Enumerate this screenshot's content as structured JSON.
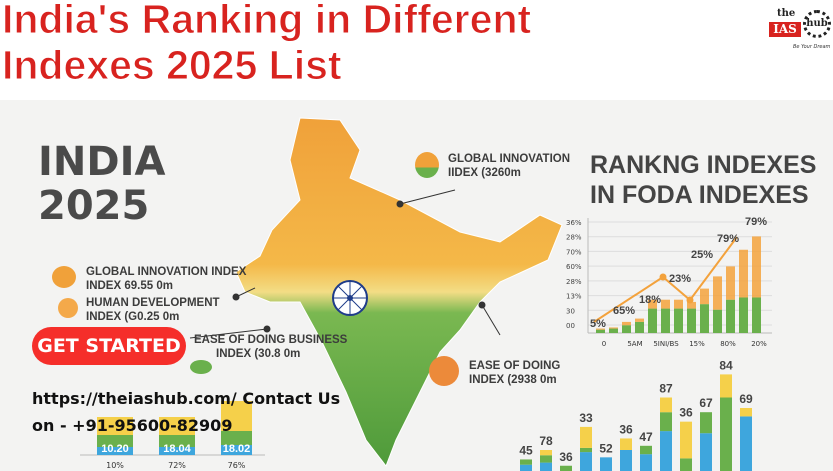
{
  "title": {
    "line1": "India's Ranking in Different",
    "line2": "Indexes 2025 List"
  },
  "logo": {
    "text_the": "the",
    "text_ias": "IAS",
    "text_hub": "hub",
    "tagline": "Be Your Dream"
  },
  "india_heading": {
    "line1": "INDIA",
    "line2": "2025"
  },
  "left_labels": [
    {
      "line1": "GLOBAL INNOVATION INDEX",
      "line2": "INDEX 69.55 0m"
    },
    {
      "line1": "HUMAN DEVELOPMENT",
      "line2": "INDEX (G0.25 0m"
    },
    {
      "line1": "EASE OF DOING BUSINESS",
      "line2": "INDEX (30.8 0m"
    }
  ],
  "map_labels": [
    {
      "line1": "GLOBAL INNOVATION",
      "line2": "IIDEX (3260m"
    },
    {
      "line1": "EASE OF DOING",
      "line2": "INDEX (2938 0m"
    }
  ],
  "right_heading": {
    "line1": "RANKNG INDEXES",
    "line2": "IN FODA INDEXES"
  },
  "cta": {
    "label": "GET STARTED"
  },
  "contact": {
    "line1": "https://theiashub.com/  Contact  Us",
    "line2": "on - +91-95600-82909"
  },
  "colors": {
    "red": "#d8231f",
    "orange": "#f3a23c",
    "yellow": "#f5d04a",
    "green": "#6ab04c",
    "blue": "#3ea6dd"
  },
  "chart_data": [
    {
      "type": "bar",
      "title": "RANKNG INDEXES IN FODA INDEXES",
      "yticks": [
        "36%",
        "28%",
        "70%",
        "60%",
        "28%",
        "13%",
        "30",
        "00"
      ],
      "xticks": [
        "0",
        "5AM",
        "5INI/BS",
        "15%",
        "80%",
        "20%"
      ],
      "data_labels": [
        "5%",
        "65%",
        "18%",
        "23%",
        "25%",
        "79%",
        "79%"
      ],
      "bars": [
        {
          "g": 0.03,
          "y": 0.01
        },
        {
          "g": 0.04,
          "y": 0.01
        },
        {
          "g": 0.07,
          "y": 0.03
        },
        {
          "g": 0.1,
          "y": 0.03
        },
        {
          "g": 0.22,
          "y": 0.08
        },
        {
          "g": 0.22,
          "y": 0.08
        },
        {
          "g": 0.22,
          "y": 0.08
        },
        {
          "g": 0.22,
          "y": 0.06
        },
        {
          "g": 0.26,
          "y": 0.14
        },
        {
          "g": 0.21,
          "y": 0.3
        },
        {
          "g": 0.3,
          "y": 0.3
        },
        {
          "g": 0.32,
          "y": 0.43
        },
        {
          "g": 0.32,
          "y": 0.55
        }
      ],
      "line": [
        0.1,
        0.55,
        0.27,
        0.82
      ]
    },
    {
      "type": "bar",
      "values": [
        45,
        78,
        36,
        33,
        52,
        36,
        47,
        87,
        36,
        67,
        84,
        69
      ],
      "segments": [
        [
          6,
          5,
          0
        ],
        [
          8,
          7,
          5
        ],
        [
          0,
          5,
          0
        ],
        [
          18,
          4,
          20
        ],
        [
          13,
          0,
          0
        ],
        [
          20,
          0,
          11
        ],
        [
          16,
          8,
          0
        ],
        [
          38,
          18,
          14
        ],
        [
          0,
          12,
          35
        ],
        [
          36,
          20,
          0
        ],
        [
          0,
          70,
          22
        ],
        [
          52,
          0,
          8
        ]
      ]
    },
    {
      "type": "bar",
      "xticks": [
        "10%",
        "72%",
        "76%"
      ],
      "data_labels": [
        "10.20",
        "18.04",
        "18.02"
      ],
      "segments": [
        [
          8,
          12,
          18
        ],
        [
          8,
          12,
          18
        ],
        [
          10,
          14,
          30
        ]
      ]
    }
  ]
}
